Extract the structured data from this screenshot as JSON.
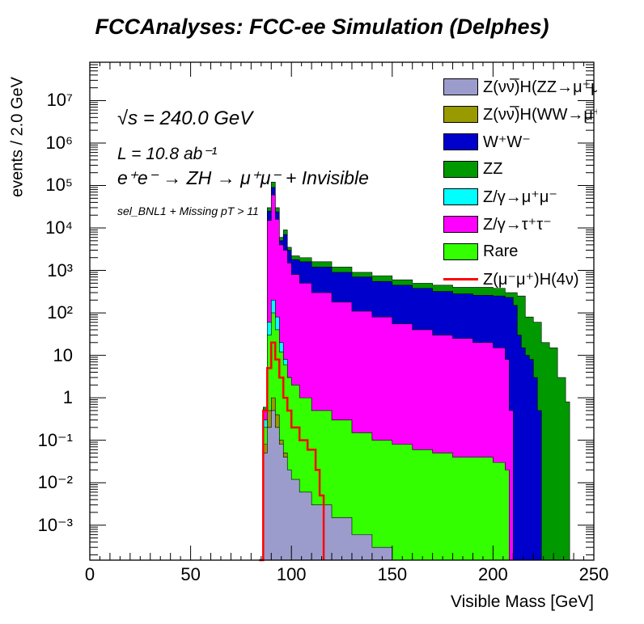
{
  "title": "FCCAnalyses: FCC-ee Simulation (Delphes)",
  "annotations": {
    "energy": "√s = 240.0 GeV",
    "lumi": "L = 10.8 ab⁻¹",
    "process": "e⁺e⁻ → ZH → μ⁺μ⁻ + Invisible",
    "selection": "sel_BNL1 + Missing pT > 11"
  },
  "chart_data": {
    "type": "histogram-stacked",
    "xlabel": "Visible Mass [GeV]",
    "ylabel": "events / 2.0 GeV",
    "xlim": [
      0,
      250
    ],
    "ylim": [
      0.00015,
      80000000
    ],
    "log_y": true,
    "grid": false,
    "legend_position": "top-right",
    "x_ticks": [
      "0",
      "50",
      "100",
      "150",
      "200",
      "250"
    ],
    "y_ticks": [
      "10⁻³",
      "10⁻²",
      "10⁻¹",
      "1",
      "10",
      "10²",
      "10³",
      "10⁴",
      "10⁵",
      "10⁶",
      "10⁷"
    ],
    "y_tick_values": [
      0.001,
      0.01,
      0.1,
      1,
      10,
      100,
      1000,
      10000,
      100000,
      1000000,
      10000000
    ],
    "bin_width": 2,
    "stack_order_bottom_to_top": [
      "Z(νν̅)H(ZZ→μ⁺μ⁻νν̅)",
      "Z(νν̅)H(WW→μ⁺νμ⁻ν̅)",
      "Rare",
      "Z/γ→μ⁺μ⁻",
      "Z/γ→τ⁺τ⁻",
      "W⁺W⁻",
      "ZZ"
    ],
    "legend": [
      {
        "label": "Z(νν̅)H(ZZ→μ⁺μ⁻νν̅)",
        "color": "#9c9ccc",
        "style": "fill"
      },
      {
        "label": "Z(νν̅)H(WW→μ⁺νμ⁻ν̅)",
        "color": "#999900",
        "style": "fill"
      },
      {
        "label": "W⁺W⁻",
        "color": "#0000cc",
        "style": "fill"
      },
      {
        "label": "ZZ",
        "color": "#009900",
        "style": "fill"
      },
      {
        "label": "Z/γ→μ⁺μ⁻",
        "color": "#00ffff",
        "style": "fill"
      },
      {
        "label": "Z/γ→τ⁺τ⁻",
        "color": "#ff00ff",
        "style": "fill"
      },
      {
        "label": "Rare",
        "color": "#33ff00",
        "style": "fill"
      },
      {
        "label": "Z(μ⁻μ⁺)H(4ν)",
        "color": "#ff0000",
        "style": "line"
      }
    ],
    "series": [
      {
        "name": "ZZ (stack top)",
        "color": "#009900",
        "points": [
          [
            84,
            0.00015
          ],
          [
            86,
            0.6
          ],
          [
            88,
            30000
          ],
          [
            90,
            120000
          ],
          [
            92,
            30000
          ],
          [
            94,
            6000
          ],
          [
            96,
            9000
          ],
          [
            98,
            3500
          ],
          [
            100,
            2200
          ],
          [
            104,
            2000
          ],
          [
            110,
            1600
          ],
          [
            120,
            1200
          ],
          [
            130,
            900
          ],
          [
            140,
            750
          ],
          [
            150,
            600
          ],
          [
            160,
            500
          ],
          [
            170,
            450
          ],
          [
            180,
            400
          ],
          [
            190,
            400
          ],
          [
            200,
            380
          ],
          [
            206,
            300
          ],
          [
            212,
            250
          ],
          [
            216,
            80
          ],
          [
            220,
            60
          ],
          [
            224,
            20
          ],
          [
            228,
            15
          ],
          [
            232,
            3
          ],
          [
            236,
            0.8
          ],
          [
            238,
            0.00015
          ]
        ]
      },
      {
        "name": "W⁺W⁻ (cumulative)",
        "color": "#0000cc",
        "points": [
          [
            84,
            0.00015
          ],
          [
            86,
            0.5
          ],
          [
            88,
            25000
          ],
          [
            90,
            90000
          ],
          [
            92,
            24000
          ],
          [
            94,
            5000
          ],
          [
            96,
            7000
          ],
          [
            98,
            3000
          ],
          [
            100,
            1800
          ],
          [
            104,
            1600
          ],
          [
            110,
            1200
          ],
          [
            120,
            900
          ],
          [
            130,
            700
          ],
          [
            140,
            550
          ],
          [
            150,
            450
          ],
          [
            160,
            380
          ],
          [
            170,
            320
          ],
          [
            180,
            280
          ],
          [
            190,
            260
          ],
          [
            200,
            250
          ],
          [
            206,
            230
          ],
          [
            210,
            150
          ],
          [
            212,
            30
          ],
          [
            214,
            15
          ],
          [
            216,
            10
          ],
          [
            218,
            8
          ],
          [
            220,
            3
          ],
          [
            222,
            0.5
          ],
          [
            224,
            0.00015
          ]
        ]
      },
      {
        "name": "Z/γ→τ⁺τ⁻ (cumulative)",
        "color": "#ff00ff",
        "points": [
          [
            84,
            0.00015
          ],
          [
            86,
            0.5
          ],
          [
            88,
            15000
          ],
          [
            90,
            60000
          ],
          [
            92,
            16000
          ],
          [
            94,
            4000
          ],
          [
            96,
            3000
          ],
          [
            98,
            1500
          ],
          [
            100,
            800
          ],
          [
            104,
            500
          ],
          [
            110,
            300
          ],
          [
            120,
            180
          ],
          [
            130,
            110
          ],
          [
            140,
            80
          ],
          [
            150,
            55
          ],
          [
            160,
            40
          ],
          [
            170,
            30
          ],
          [
            180,
            25
          ],
          [
            190,
            20
          ],
          [
            200,
            15
          ],
          [
            206,
            8
          ],
          [
            208,
            0.5
          ],
          [
            210,
            0.00015
          ]
        ]
      },
      {
        "name": "Z/γ→μ⁺μ⁻ (cumulative)",
        "color": "#00ffff",
        "points": [
          [
            84,
            0.00015
          ],
          [
            86,
            0.3
          ],
          [
            88,
            60
          ],
          [
            90,
            200
          ],
          [
            92,
            80
          ],
          [
            94,
            20
          ],
          [
            96,
            8
          ],
          [
            98,
            3
          ],
          [
            100,
            1.5
          ],
          [
            102,
            0.00015
          ]
        ]
      },
      {
        "name": "Rare (cumulative)",
        "color": "#33ff00",
        "points": [
          [
            84,
            0.00015
          ],
          [
            86,
            0.2
          ],
          [
            88,
            30
          ],
          [
            90,
            100
          ],
          [
            92,
            40
          ],
          [
            94,
            12
          ],
          [
            96,
            6
          ],
          [
            98,
            3
          ],
          [
            100,
            2
          ],
          [
            104,
            1
          ],
          [
            110,
            0.5
          ],
          [
            120,
            0.3
          ],
          [
            130,
            0.15
          ],
          [
            140,
            0.1
          ],
          [
            150,
            0.08
          ],
          [
            160,
            0.06
          ],
          [
            170,
            0.05
          ],
          [
            180,
            0.04
          ],
          [
            190,
            0.04
          ],
          [
            200,
            0.03
          ],
          [
            206,
            0.02
          ],
          [
            208,
            0.00015
          ]
        ]
      },
      {
        "name": "Z(νν̅)H(WW→μ⁺νμ⁻ν̅) (cumulative)",
        "color": "#999900",
        "points": [
          [
            84,
            0.00015
          ],
          [
            86,
            0.08
          ],
          [
            88,
            0.5
          ],
          [
            90,
            1
          ],
          [
            92,
            0.4
          ],
          [
            94,
            0.1
          ],
          [
            96,
            0.05
          ],
          [
            98,
            0.02
          ],
          [
            100,
            0.01
          ],
          [
            104,
            0.004
          ],
          [
            108,
            0.002
          ],
          [
            112,
            0.001
          ],
          [
            116,
            0.0004
          ],
          [
            120,
            0.00015
          ]
        ]
      },
      {
        "name": "Z(νν̅)H(ZZ→μ⁺μ⁻νν̅) (cumulative)",
        "color": "#9c9ccc",
        "points": [
          [
            84,
            0.00015
          ],
          [
            86,
            0.05
          ],
          [
            88,
            0.2
          ],
          [
            90,
            0.5
          ],
          [
            92,
            0.2
          ],
          [
            94,
            0.08
          ],
          [
            96,
            0.04
          ],
          [
            98,
            0.02
          ],
          [
            100,
            0.012
          ],
          [
            104,
            0.006
          ],
          [
            110,
            0.003
          ],
          [
            120,
            0.0015
          ],
          [
            130,
            0.0006
          ],
          [
            140,
            0.0003
          ],
          [
            150,
            0.00015
          ]
        ]
      },
      {
        "name": "Z(μ⁻μ⁺)H(4ν)",
        "color": "#ff0000",
        "style": "line",
        "points": [
          [
            84,
            0.00015
          ],
          [
            86,
            0.5
          ],
          [
            88,
            5
          ],
          [
            90,
            20
          ],
          [
            92,
            8
          ],
          [
            94,
            3
          ],
          [
            96,
            1
          ],
          [
            98,
            0.5
          ],
          [
            100,
            0.2
          ],
          [
            104,
            0.1
          ],
          [
            108,
            0.06
          ],
          [
            112,
            0.02
          ],
          [
            114,
            0.005
          ],
          [
            116,
            0.00015
          ]
        ]
      }
    ]
  }
}
